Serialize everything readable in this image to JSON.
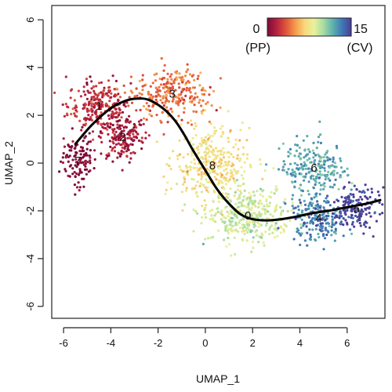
{
  "chart_data": {
    "type": "scatter",
    "title": "",
    "xlabel": "UMAP_1",
    "ylabel": "UMAP_2",
    "xlim": [
      -6.5,
      7.6
    ],
    "ylim": [
      -6.5,
      6.6
    ],
    "x_ticks": [
      -6,
      -4,
      -2,
      0,
      2,
      4,
      6
    ],
    "y_ticks": [
      -6,
      -4,
      -2,
      0,
      2,
      4,
      6
    ],
    "grid": false,
    "colorbar": {
      "min_label": "0",
      "max_label": "15",
      "min_name": "(PP)",
      "max_name": "(CV)",
      "placement": "top-right",
      "colors": [
        "#7b0b3a",
        "#b6223f",
        "#e0553a",
        "#f59a4a",
        "#f7d77c",
        "#e9f29a",
        "#a8dca3",
        "#5fb2ac",
        "#3f79b7",
        "#4b3d96"
      ]
    },
    "clusters": [
      {
        "label": "7",
        "x": -5.4,
        "y": 0.1,
        "order": 0
      },
      {
        "label": "1",
        "x": -4.5,
        "y": 2.4,
        "order": 2
      },
      {
        "label": "2",
        "x": -3.5,
        "y": 1.1,
        "order": 1
      },
      {
        "label": "3",
        "x": -1.4,
        "y": 2.9,
        "order": 4
      },
      {
        "label": "8",
        "x": 0.3,
        "y": -0.1,
        "order": 7
      },
      {
        "label": "0",
        "x": 1.8,
        "y": -2.2,
        "order": 9
      },
      {
        "label": "6",
        "x": 4.6,
        "y": -0.2,
        "order": 12
      },
      {
        "label": "4",
        "x": 4.8,
        "y": -2.3,
        "order": 13
      },
      {
        "label": "5",
        "x": 6.4,
        "y": -1.9,
        "order": 15
      }
    ],
    "trajectory": {
      "x": [
        -5.5,
        -4.8,
        -4.0,
        -3.4,
        -2.9,
        -2.4,
        -1.8,
        -1.3,
        -0.9,
        -0.5,
        0.0,
        0.5,
        1.0,
        1.5,
        2.0,
        2.6,
        3.2,
        3.8,
        4.5,
        5.2,
        6.0,
        6.8,
        7.4
      ],
      "y": [
        0.8,
        1.6,
        2.3,
        2.6,
        2.7,
        2.65,
        2.3,
        1.8,
        1.2,
        0.5,
        -0.3,
        -1.1,
        -1.7,
        -2.15,
        -2.35,
        -2.4,
        -2.35,
        -2.25,
        -2.1,
        -2.0,
        -1.85,
        -1.7,
        -1.55
      ]
    }
  }
}
